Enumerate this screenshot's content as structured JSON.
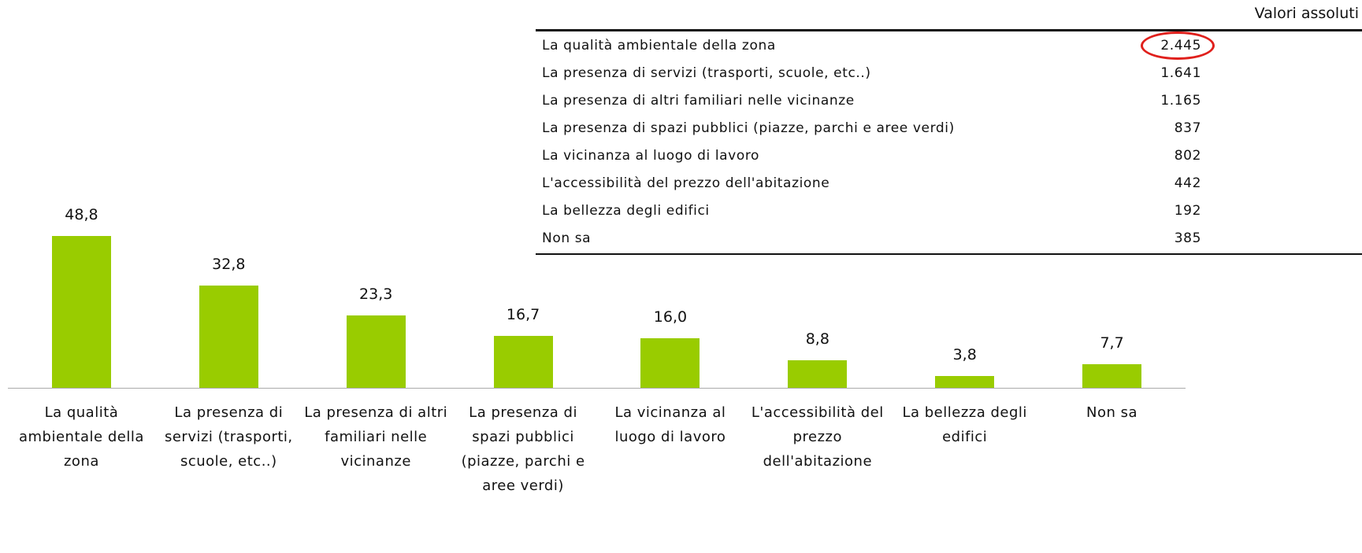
{
  "chart_data": {
    "type": "bar",
    "categories": [
      "La qualità ambientale della zona",
      "La presenza di servizi (trasporti, scuole, etc..)",
      "La presenza di altri familiari nelle vicinanze",
      "La presenza di spazi pubblici (piazze, parchi e aree verdi)",
      "La vicinanza al luogo di lavoro",
      "L'accessibilità del prezzo dell'abitazione",
      "La bellezza degli edifici",
      "Non sa"
    ],
    "values": [
      48.8,
      32.8,
      23.3,
      16.7,
      16.0,
      8.8,
      3.8,
      7.7
    ],
    "value_labels": [
      "48,8",
      "32,8",
      "23,3",
      "16,7",
      "16,0",
      "8,8",
      "3,8",
      "7,7"
    ],
    "color": "#99cc00"
  },
  "table": {
    "header": "Valori assoluti",
    "rows": [
      [
        "La qualità ambientale della zona",
        "2.445"
      ],
      [
        "La presenza di servizi (trasporti, scuole, etc..)",
        "1.641"
      ],
      [
        "La presenza di altri familiari nelle vicinanze",
        "1.165"
      ],
      [
        "La presenza di spazi pubblici (piazze, parchi e aree verdi)",
        "837"
      ],
      [
        "La vicinanza al luogo di lavoro",
        "802"
      ],
      [
        "L'accessibilità del prezzo dell'abitazione",
        "442"
      ],
      [
        "La bellezza degli edifici",
        "192"
      ],
      [
        "Non sa",
        "385"
      ]
    ]
  }
}
